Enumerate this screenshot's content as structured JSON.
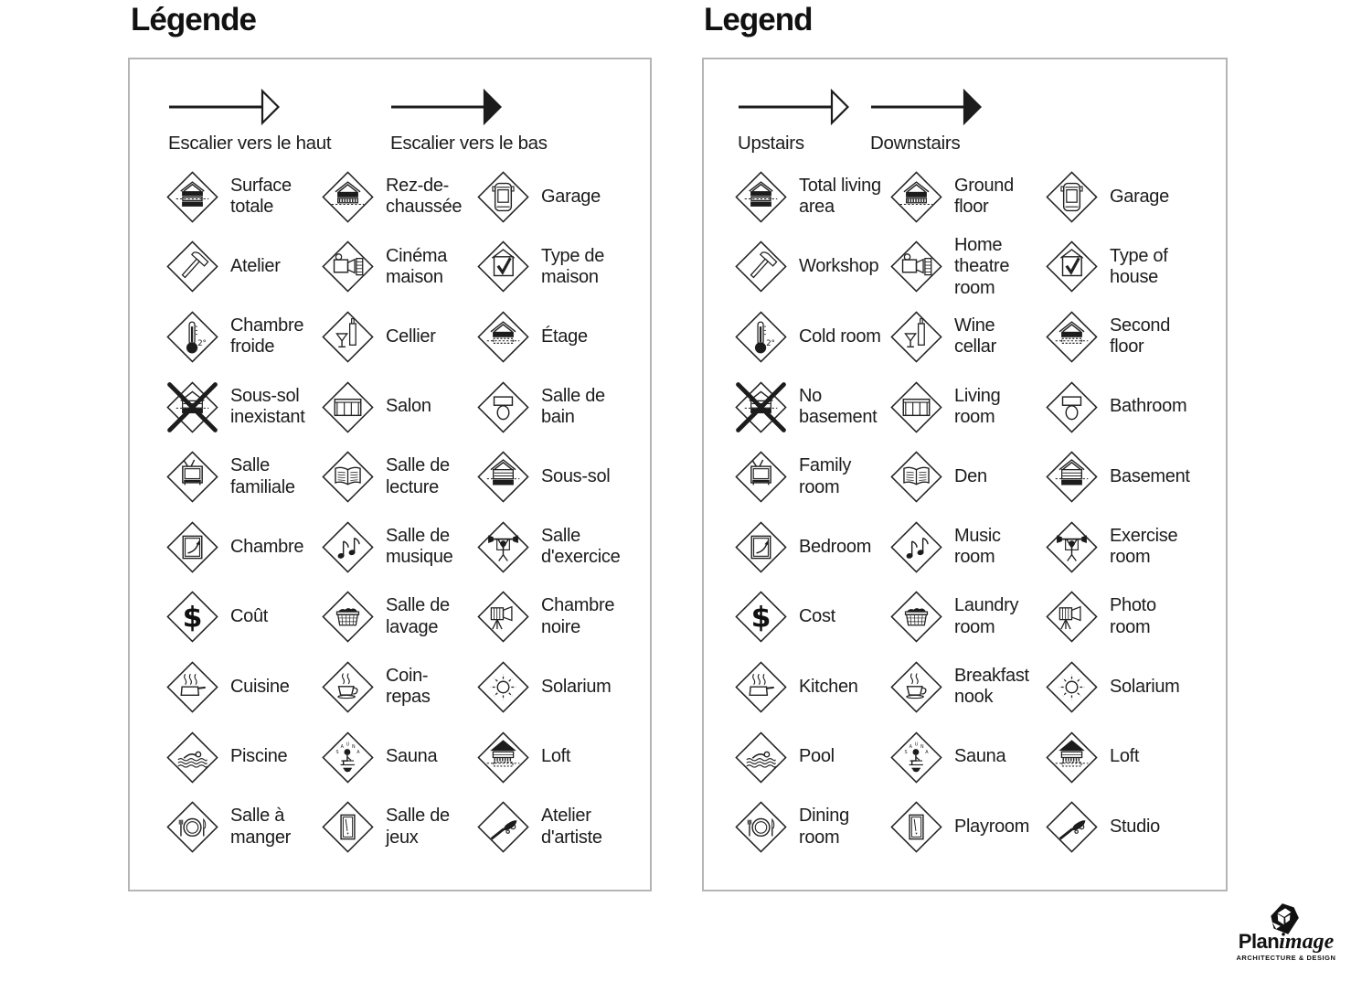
{
  "colors": {
    "ink": "#1c1c1c",
    "panel_border": "#b5b5b5",
    "background": "#ffffff"
  },
  "panels": [
    {
      "id": "fr",
      "title": "Légende",
      "arrows": [
        {
          "label": "Escalier vers le haut",
          "head": "open"
        },
        {
          "label": "Escalier vers le bas",
          "head": "filled"
        }
      ],
      "items": [
        {
          "icon": "house-total",
          "label": "Surface totale"
        },
        {
          "icon": "house-ground-floor",
          "label": "Rez-de-chaussée"
        },
        {
          "icon": "car",
          "label": "Garage"
        },
        {
          "icon": "hammer",
          "label": "Atelier"
        },
        {
          "icon": "projector",
          "label": "Cinéma maison"
        },
        {
          "icon": "house-check",
          "label": "Type de maison"
        },
        {
          "icon": "thermometer",
          "label": "Chambre froide"
        },
        {
          "icon": "wine",
          "label": "Cellier"
        },
        {
          "icon": "house-second-floor",
          "label": "Étage"
        },
        {
          "icon": "house-crossed",
          "label": "Sous-sol inexistant"
        },
        {
          "icon": "sofa",
          "label": "Salon"
        },
        {
          "icon": "toilet",
          "label": "Salle de bain"
        },
        {
          "icon": "tv",
          "label": "Salle familiale"
        },
        {
          "icon": "open-book",
          "label": "Salle de lecture"
        },
        {
          "icon": "house-basement",
          "label": "Sous-sol"
        },
        {
          "icon": "window-arrow",
          "label": "Chambre"
        },
        {
          "icon": "music-notes",
          "label": "Salle de musique"
        },
        {
          "icon": "weightlifter",
          "label": "Salle d'exercice"
        },
        {
          "icon": "dollar",
          "label": "Coût"
        },
        {
          "icon": "laundry-basket",
          "label": "Salle de lavage"
        },
        {
          "icon": "camera-tripod",
          "label": "Chambre noire"
        },
        {
          "icon": "pot-steam",
          "label": "Cuisine"
        },
        {
          "icon": "cup-steam",
          "label": "Coin-repas"
        },
        {
          "icon": "sun",
          "label": "Solarium"
        },
        {
          "icon": "swimmer",
          "label": "Piscine"
        },
        {
          "icon": "sauna-person",
          "label": "Sauna"
        },
        {
          "icon": "house-loft",
          "label": "Loft"
        },
        {
          "icon": "plate-cutlery",
          "label": "Salle à manger"
        },
        {
          "icon": "pool-table",
          "label": "Salle de jeux"
        },
        {
          "icon": "paintbrush",
          "label": "Atelier d'artiste"
        }
      ]
    },
    {
      "id": "en",
      "title": "Legend",
      "arrows": [
        {
          "label": "Upstairs",
          "head": "open"
        },
        {
          "label": "Downstairs",
          "head": "filled"
        }
      ],
      "items": [
        {
          "icon": "house-total",
          "label": "Total living area"
        },
        {
          "icon": "house-ground-floor",
          "label": "Ground floor"
        },
        {
          "icon": "car",
          "label": "Garage"
        },
        {
          "icon": "hammer",
          "label": "Workshop"
        },
        {
          "icon": "projector",
          "label": "Home theatre room"
        },
        {
          "icon": "house-check",
          "label": "Type of house"
        },
        {
          "icon": "thermometer",
          "label": "Cold room"
        },
        {
          "icon": "wine",
          "label": "Wine cellar"
        },
        {
          "icon": "house-second-floor",
          "label": "Second floor"
        },
        {
          "icon": "house-crossed",
          "label": "No basement"
        },
        {
          "icon": "sofa",
          "label": "Living room"
        },
        {
          "icon": "toilet",
          "label": "Bathroom"
        },
        {
          "icon": "tv",
          "label": "Family room"
        },
        {
          "icon": "open-book",
          "label": "Den"
        },
        {
          "icon": "house-basement",
          "label": "Basement"
        },
        {
          "icon": "window-arrow",
          "label": "Bedroom"
        },
        {
          "icon": "music-notes",
          "label": "Music room"
        },
        {
          "icon": "weightlifter",
          "label": "Exercise room"
        },
        {
          "icon": "dollar",
          "label": "Cost"
        },
        {
          "icon": "laundry-basket",
          "label": "Laundry room"
        },
        {
          "icon": "camera-tripod",
          "label": "Photo room"
        },
        {
          "icon": "pot-steam",
          "label": "Kitchen"
        },
        {
          "icon": "cup-steam",
          "label": "Breakfast nook"
        },
        {
          "icon": "sun",
          "label": "Solarium"
        },
        {
          "icon": "swimmer",
          "label": "Pool"
        },
        {
          "icon": "sauna-person",
          "label": "Sauna"
        },
        {
          "icon": "house-loft",
          "label": "Loft"
        },
        {
          "icon": "plate-cutlery",
          "label": "Dining room"
        },
        {
          "icon": "pool-table",
          "label": "Playroom"
        },
        {
          "icon": "paintbrush",
          "label": "Studio"
        }
      ]
    }
  ],
  "logo": {
    "brand_bold": "Plan",
    "brand_script": "image",
    "tagline": "ARCHITECTURE & DESIGN"
  }
}
